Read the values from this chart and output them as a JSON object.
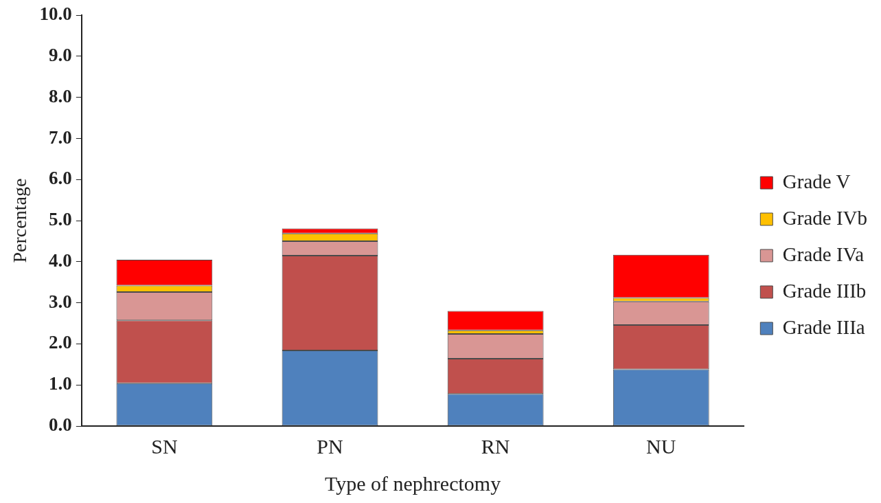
{
  "chart_data": {
    "type": "bar",
    "stacked": true,
    "xlabel": "Type of nephrectomy",
    "ylabel": "Percentage",
    "categories": [
      "SN",
      "PN",
      "RN",
      "NU"
    ],
    "series": [
      {
        "name": "Grade IIIa",
        "color": "#4f81bd",
        "values": [
          1.04,
          1.84,
          0.78,
          1.38
        ]
      },
      {
        "name": "Grade IIIb",
        "color": "#c0504d",
        "values": [
          1.53,
          2.31,
          0.86,
          1.08
        ]
      },
      {
        "name": "Grade IVa",
        "color": "#d99694",
        "values": [
          0.69,
          0.35,
          0.6,
          0.57
        ]
      },
      {
        "name": "Grade IVb",
        "color": "#ffc000",
        "values": [
          0.16,
          0.19,
          0.09,
          0.09
        ]
      },
      {
        "name": "Grade V",
        "color": "#ff0000",
        "values": [
          0.63,
          0.12,
          0.47,
          1.05
        ]
      }
    ],
    "ylim": [
      0,
      10
    ],
    "yticks": [
      {
        "value": 0,
        "label": "0.0"
      },
      {
        "value": 1,
        "label": "1.0"
      },
      {
        "value": 2,
        "label": "2.0"
      },
      {
        "value": 3,
        "label": "3.0"
      },
      {
        "value": 4,
        "label": "4.0"
      },
      {
        "value": 5,
        "label": "5.0"
      },
      {
        "value": 6,
        "label": "6.0"
      },
      {
        "value": 7,
        "label": "7.0"
      },
      {
        "value": 8,
        "label": "8.0"
      },
      {
        "value": 9,
        "label": "9.0"
      },
      {
        "value": 10,
        "label": "10.0"
      }
    ],
    "grid": false,
    "legend": "right"
  }
}
